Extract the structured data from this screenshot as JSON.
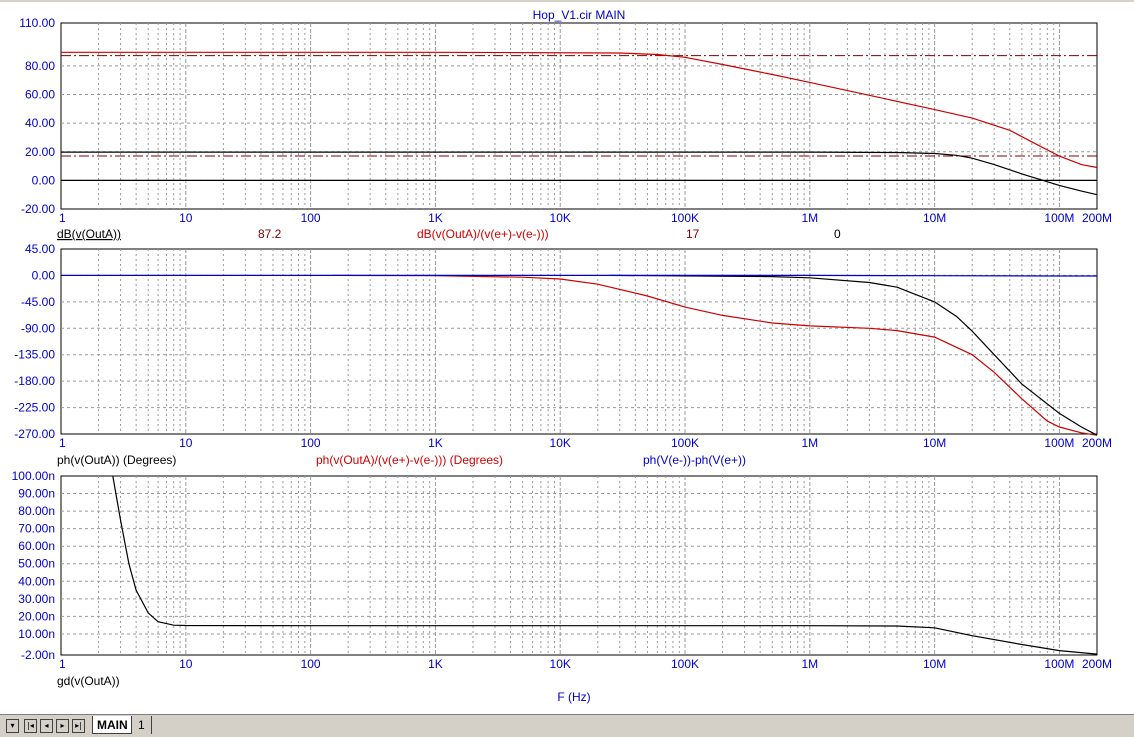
{
  "window": {
    "title": "Hop_V1.cir MAIN"
  },
  "tabs": [
    {
      "label": "MAIN",
      "active": true
    },
    {
      "label": "1",
      "active": false
    }
  ],
  "icons": {
    "dropdown": "▾",
    "first": "|◂",
    "prev": "◂",
    "next": "▸",
    "last": "▸|"
  },
  "x_axis": {
    "label": "F (Hz)",
    "scale": "log",
    "range": [
      1,
      200000000
    ],
    "ticks": [
      {
        "v": 1,
        "label": "1"
      },
      {
        "v": 10,
        "label": "10"
      },
      {
        "v": 100,
        "label": "100"
      },
      {
        "v": 1000,
        "label": "1K"
      },
      {
        "v": 10000,
        "label": "10K"
      },
      {
        "v": 100000,
        "label": "100K"
      },
      {
        "v": 1000000,
        "label": "1M"
      },
      {
        "v": 10000000,
        "label": "10M"
      },
      {
        "v": 100000000,
        "label": "100M"
      },
      {
        "v": 200000000,
        "label": "200M"
      }
    ]
  },
  "colors": {
    "axis_text": "#0000cc",
    "grid": "#9a9a9a",
    "black": "#000000",
    "red": "#cc0000",
    "blue": "#0000cc",
    "darkred": "#800000"
  },
  "chart_data": [
    {
      "type": "line",
      "name": "magnitude",
      "ylim": [
        -20,
        110
      ],
      "grid": true,
      "yticks": [
        {
          "v": 110,
          "label": "110.00"
        },
        {
          "v": 80,
          "label": "80.00"
        },
        {
          "v": 60,
          "label": "60.00"
        },
        {
          "v": 40,
          "label": "40.00"
        },
        {
          "v": 20,
          "label": "20.00"
        },
        {
          "v": 0,
          "label": "0.00"
        },
        {
          "v": -20,
          "label": "-20.00"
        }
      ],
      "legend": [
        {
          "text": "dB(v(OutA))",
          "color": "#000000",
          "underline": true
        },
        {
          "text": "87.2",
          "color": "#800000"
        },
        {
          "text": "dB(v(OutA)/(v(e+)-v(e-)))",
          "color": "#cc0000"
        },
        {
          "text": "17",
          "color": "#800000"
        },
        {
          "text": "0",
          "color": "#000000"
        }
      ],
      "markers": [
        {
          "y": 87.2,
          "color": "#800000"
        },
        {
          "y": 17,
          "color": "#800000"
        }
      ],
      "series": [
        {
          "color": "#cc0000",
          "x": [
            1,
            1000,
            30000,
            60000,
            100000,
            200000,
            500000,
            1000000,
            3000000,
            10000000,
            20000000,
            40000000,
            60000000,
            100000000,
            150000000,
            200000000
          ],
          "y": [
            89.5,
            89.5,
            89,
            88,
            86,
            81,
            74,
            68.5,
            59.5,
            49.5,
            43.5,
            35,
            27,
            17,
            11,
            9
          ]
        },
        {
          "color": "#000000",
          "x": [
            1,
            1000000,
            5000000,
            10000000,
            15000000,
            20000000,
            30000000,
            50000000,
            100000000,
            150000000,
            200000000
          ],
          "y": [
            19.8,
            19.8,
            19.5,
            18.8,
            17.5,
            15.5,
            11,
            4.5,
            -3.5,
            -7.5,
            -10
          ]
        },
        {
          "color": "#000000",
          "x": [
            1,
            200000000
          ],
          "y": [
            0,
            0
          ]
        }
      ]
    },
    {
      "type": "line",
      "name": "phase",
      "ylim": [
        -270,
        45
      ],
      "grid": true,
      "yticks": [
        {
          "v": 45,
          "label": "45.00"
        },
        {
          "v": 0,
          "label": "0.00"
        },
        {
          "v": -45,
          "label": "-45.00"
        },
        {
          "v": -90,
          "label": "-90.00"
        },
        {
          "v": -135,
          "label": "-135.00"
        },
        {
          "v": -180,
          "label": "-180.00"
        },
        {
          "v": -225,
          "label": "-225.00"
        },
        {
          "v": -270,
          "label": "-270.00"
        }
      ],
      "legend": [
        {
          "text": "ph(v(OutA)) (Degrees)",
          "color": "#000000"
        },
        {
          "text": "ph(v(OutA)/(v(e+)-v(e-))) (Degrees)",
          "color": "#cc0000"
        },
        {
          "text": "ph(V(e-))-ph(V(e+))",
          "color": "#0000cc"
        }
      ],
      "series": [
        {
          "color": "#cc0000",
          "x": [
            150,
            1000,
            5000,
            10000,
            20000,
            50000,
            100000,
            200000,
            500000,
            1000000,
            3000000,
            5000000,
            10000000,
            20000000,
            30000000,
            50000000,
            80000000,
            100000000,
            150000000,
            200000000
          ],
          "y": [
            0,
            -0.5,
            -3,
            -6,
            -15,
            -35,
            -54,
            -68,
            -81,
            -86,
            -90,
            -94,
            -105,
            -135,
            -165,
            -210,
            -248,
            -258,
            -268,
            -272
          ]
        },
        {
          "color": "#000000",
          "x": [
            25000,
            500000,
            1000000,
            3000000,
            5000000,
            10000000,
            15000000,
            20000000,
            30000000,
            50000000,
            100000000,
            150000000,
            200000000
          ],
          "y": [
            0,
            -2,
            -4,
            -12,
            -20,
            -45,
            -70,
            -95,
            -135,
            -185,
            -235,
            -258,
            -272
          ]
        },
        {
          "color": "#0000cc",
          "x": [
            1,
            1000000,
            10000000,
            100000000,
            200000000
          ],
          "y": [
            0,
            0,
            -0.5,
            -1,
            -1
          ]
        }
      ]
    },
    {
      "type": "line",
      "name": "group-delay",
      "ylim": [
        -2,
        100
      ],
      "grid": true,
      "yticks": [
        {
          "v": 100,
          "label": "100.00n"
        },
        {
          "v": 90,
          "label": "90.00n"
        },
        {
          "v": 80,
          "label": "80.00n"
        },
        {
          "v": 70,
          "label": "70.00n"
        },
        {
          "v": 60,
          "label": "60.00n"
        },
        {
          "v": 50,
          "label": "50.00n"
        },
        {
          "v": 40,
          "label": "40.00n"
        },
        {
          "v": 30,
          "label": "30.00n"
        },
        {
          "v": 20,
          "label": "20.00n"
        },
        {
          "v": 10,
          "label": "10.00n"
        },
        {
          "v": -2,
          "label": "-2.00n"
        }
      ],
      "legend": [
        {
          "text": "gd(v(OutA))",
          "color": "#000000"
        }
      ],
      "series": [
        {
          "color": "#000000",
          "x": [
            2.6,
            3,
            3.5,
            4,
            5,
            6,
            8,
            10,
            100,
            1000,
            1000000,
            5000000,
            10000000,
            20000000,
            50000000,
            100000000,
            200000000
          ],
          "y": [
            100,
            75,
            50,
            35,
            22,
            17,
            15,
            14.8,
            14.7,
            14.7,
            14.7,
            14.5,
            13.5,
            9,
            4,
            0.5,
            -1.5
          ]
        }
      ]
    }
  ]
}
